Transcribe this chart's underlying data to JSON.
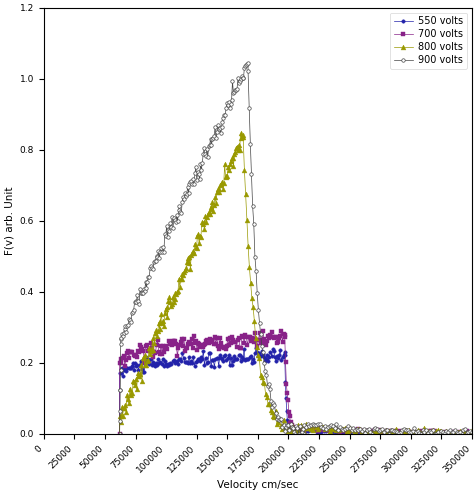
{
  "title": "",
  "xlabel": "Velocity cm/sec",
  "ylabel": "F(v) arb. Unit",
  "xlim": [
    0,
    350000
  ],
  "ylim": [
    0,
    1.2
  ],
  "xticks": [
    0,
    25000,
    50000,
    75000,
    100000,
    125000,
    150000,
    175000,
    200000,
    225000,
    250000,
    275000,
    300000,
    325000,
    350000
  ],
  "yticks": [
    0,
    0.2,
    0.4,
    0.6,
    0.8,
    1.0,
    1.2
  ],
  "series": [
    {
      "label": "550 volts",
      "color": "#2222aa",
      "marker": "o",
      "marker_size": 2.5
    },
    {
      "label": "700 volts",
      "color": "#882288",
      "marker": "s",
      "marker_size": 2.5
    },
    {
      "label": "800 volts",
      "color": "#999900",
      "marker": "^",
      "marker_size": 3.5
    },
    {
      "label": "900 volts",
      "color": "#444444",
      "marker": "o",
      "marker_size": 2.5
    }
  ],
  "background_color": "#ffffff",
  "legend_loc": "upper right",
  "font_size": 7.5
}
